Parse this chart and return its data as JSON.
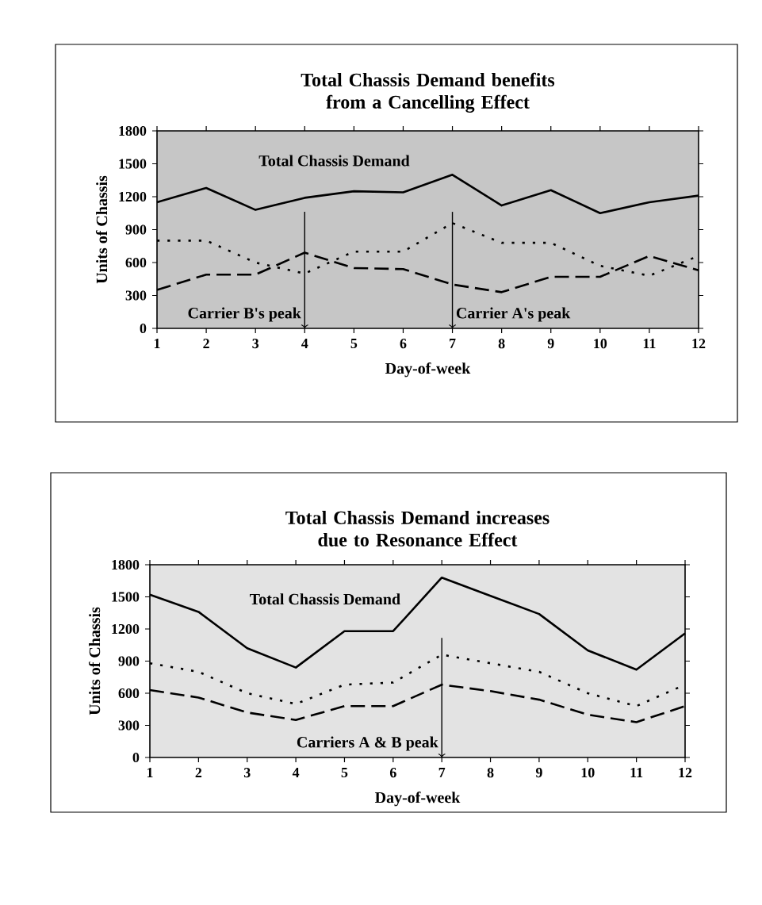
{
  "chart_data": [
    {
      "type": "line",
      "title": "Total Chassis Demand benefits from a Cancelling Effect",
      "xlabel": "Day-of-week",
      "ylabel": "Units of Chassis",
      "categories": [
        "1",
        "2",
        "3",
        "4",
        "5",
        "6",
        "7",
        "8",
        "9",
        "10",
        "11",
        "12"
      ],
      "ylim": [
        0,
        1800
      ],
      "yticks": [
        0,
        300,
        600,
        900,
        1200,
        1500,
        1800
      ],
      "marker": "none",
      "grid": false,
      "legend": false,
      "series": [
        {
          "name": "Total Chassis Demand",
          "color": "#000000",
          "line_style": "solid",
          "values": [
            1150,
            1280,
            1080,
            1190,
            1250,
            1240,
            1400,
            1120,
            1260,
            1050,
            1150,
            1210
          ]
        },
        {
          "color": "#000000",
          "line_style": "dotted",
          "values": [
            800,
            800,
            600,
            500,
            700,
            700,
            960,
            780,
            780,
            570,
            480,
            660
          ]
        },
        {
          "color": "#000000",
          "line_style": "dashed",
          "values": [
            350,
            490,
            490,
            690,
            550,
            540,
            400,
            330,
            470,
            470,
            660,
            530
          ]
        }
      ],
      "ref_lines": [
        {
          "axis": "x",
          "value": "4",
          "label": "Carrier B's peak",
          "color": "#000000"
        },
        {
          "axis": "x",
          "value": "7",
          "label": "Carrier A's peak",
          "color": "#000000"
        }
      ]
    },
    {
      "type": "line",
      "title": "Total Chassis Demand increases due to Resonance Effect",
      "xlabel": "Day-of-week",
      "ylabel": "Units of Chassis",
      "categories": [
        "1",
        "2",
        "3",
        "4",
        "5",
        "6",
        "7",
        "8",
        "9",
        "10",
        "11",
        "12"
      ],
      "ylim": [
        0,
        1800
      ],
      "yticks": [
        0,
        300,
        600,
        900,
        1200,
        1500,
        1800
      ],
      "marker": "none",
      "grid": false,
      "legend": false,
      "series": [
        {
          "name": "Total Chassis Demand",
          "color": "#000000",
          "line_style": "solid",
          "values": [
            1520,
            1360,
            1020,
            840,
            1180,
            1180,
            1680,
            1510,
            1340,
            1000,
            820,
            1160
          ]
        },
        {
          "color": "#000000",
          "line_style": "dotted",
          "values": [
            880,
            800,
            600,
            500,
            680,
            700,
            960,
            880,
            800,
            600,
            480,
            680
          ]
        },
        {
          "color": "#000000",
          "line_style": "dashed",
          "values": [
            630,
            560,
            420,
            350,
            480,
            480,
            680,
            620,
            540,
            400,
            330,
            480
          ]
        }
      ],
      "ref_lines": [
        {
          "axis": "x",
          "value": "7",
          "label": "Carriers A & B peak",
          "color": "#000000"
        }
      ]
    }
  ]
}
